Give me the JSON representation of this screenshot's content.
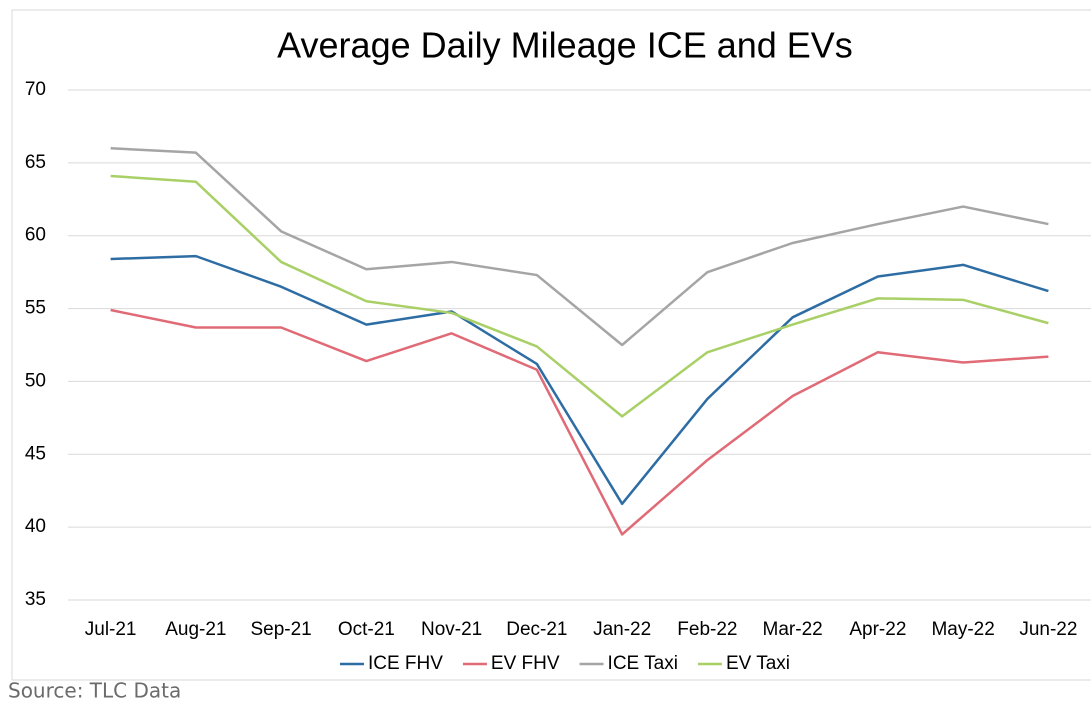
{
  "chart_data": {
    "type": "line",
    "title": "Average Daily Mileage ICE and EVs",
    "source": "Source: TLC Data",
    "categories": [
      "Jul-21",
      "Aug-21",
      "Sep-21",
      "Oct-21",
      "Nov-21",
      "Dec-21",
      "Jan-22",
      "Feb-22",
      "Mar-22",
      "Apr-22",
      "May-22",
      "Jun-22"
    ],
    "series": [
      {
        "name": "ICE FHV",
        "color": "#2e6da4",
        "values": [
          58.4,
          58.6,
          56.5,
          53.9,
          54.8,
          51.2,
          41.6,
          48.8,
          54.4,
          57.2,
          58.0,
          56.2
        ]
      },
      {
        "name": "EV FHV",
        "color": "#e06a75",
        "values": [
          54.9,
          53.7,
          53.7,
          51.4,
          53.3,
          50.8,
          39.5,
          44.6,
          49.0,
          52.0,
          51.3,
          51.7
        ]
      },
      {
        "name": "ICE Taxi",
        "color": "#a5a5a5",
        "values": [
          66.0,
          65.7,
          60.3,
          57.7,
          58.2,
          57.3,
          52.5,
          57.5,
          59.5,
          60.8,
          62.0,
          60.8
        ]
      },
      {
        "name": "EV Taxi",
        "color": "#a9d066",
        "values": [
          64.1,
          63.7,
          58.2,
          55.5,
          54.7,
          52.4,
          47.6,
          52.0,
          53.9,
          55.7,
          55.6,
          54.0
        ]
      }
    ],
    "ylim": [
      35,
      70
    ],
    "yticks": [
      35,
      40,
      45,
      50,
      55,
      60,
      65,
      70
    ],
    "grid": true,
    "legend": "bottom"
  }
}
